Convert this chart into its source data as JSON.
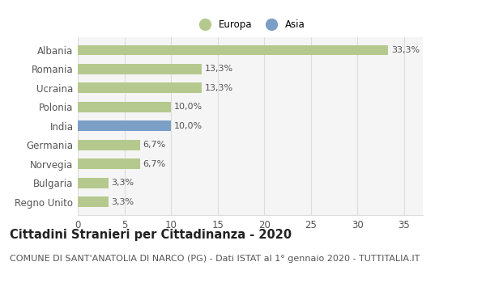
{
  "categories": [
    "Albania",
    "Romania",
    "Ucraina",
    "Polonia",
    "India",
    "Germania",
    "Norvegia",
    "Bulgaria",
    "Regno Unito"
  ],
  "values": [
    33.3,
    13.3,
    13.3,
    10.0,
    10.0,
    6.7,
    6.7,
    3.3,
    3.3
  ],
  "labels": [
    "33,3%",
    "13,3%",
    "13,3%",
    "10,0%",
    "10,0%",
    "6,7%",
    "6,7%",
    "3,3%",
    "3,3%"
  ],
  "colors": [
    "#b5c98e",
    "#b5c98e",
    "#b5c98e",
    "#b5c98e",
    "#7b9fc7",
    "#b5c98e",
    "#b5c98e",
    "#b5c98e",
    "#b5c98e"
  ],
  "europa_color": "#b5c98e",
  "asia_color": "#7b9fc7",
  "xlim": [
    0,
    37
  ],
  "xticks": [
    0,
    5,
    10,
    15,
    20,
    25,
    30,
    35
  ],
  "title": "Cittadini Stranieri per Cittadinanza - 2020",
  "subtitle": "COMUNE DI SANT'ANATOLIA DI NARCO (PG) - Dati ISTAT al 1° gennaio 2020 - TUTTITALIA.IT",
  "bg_color": "#ffffff",
  "plot_bg_color": "#f5f5f5",
  "grid_color": "#dddddd",
  "bar_height": 0.55,
  "label_fontsize": 8,
  "tick_fontsize": 8.5,
  "title_fontsize": 10.5,
  "subtitle_fontsize": 8
}
